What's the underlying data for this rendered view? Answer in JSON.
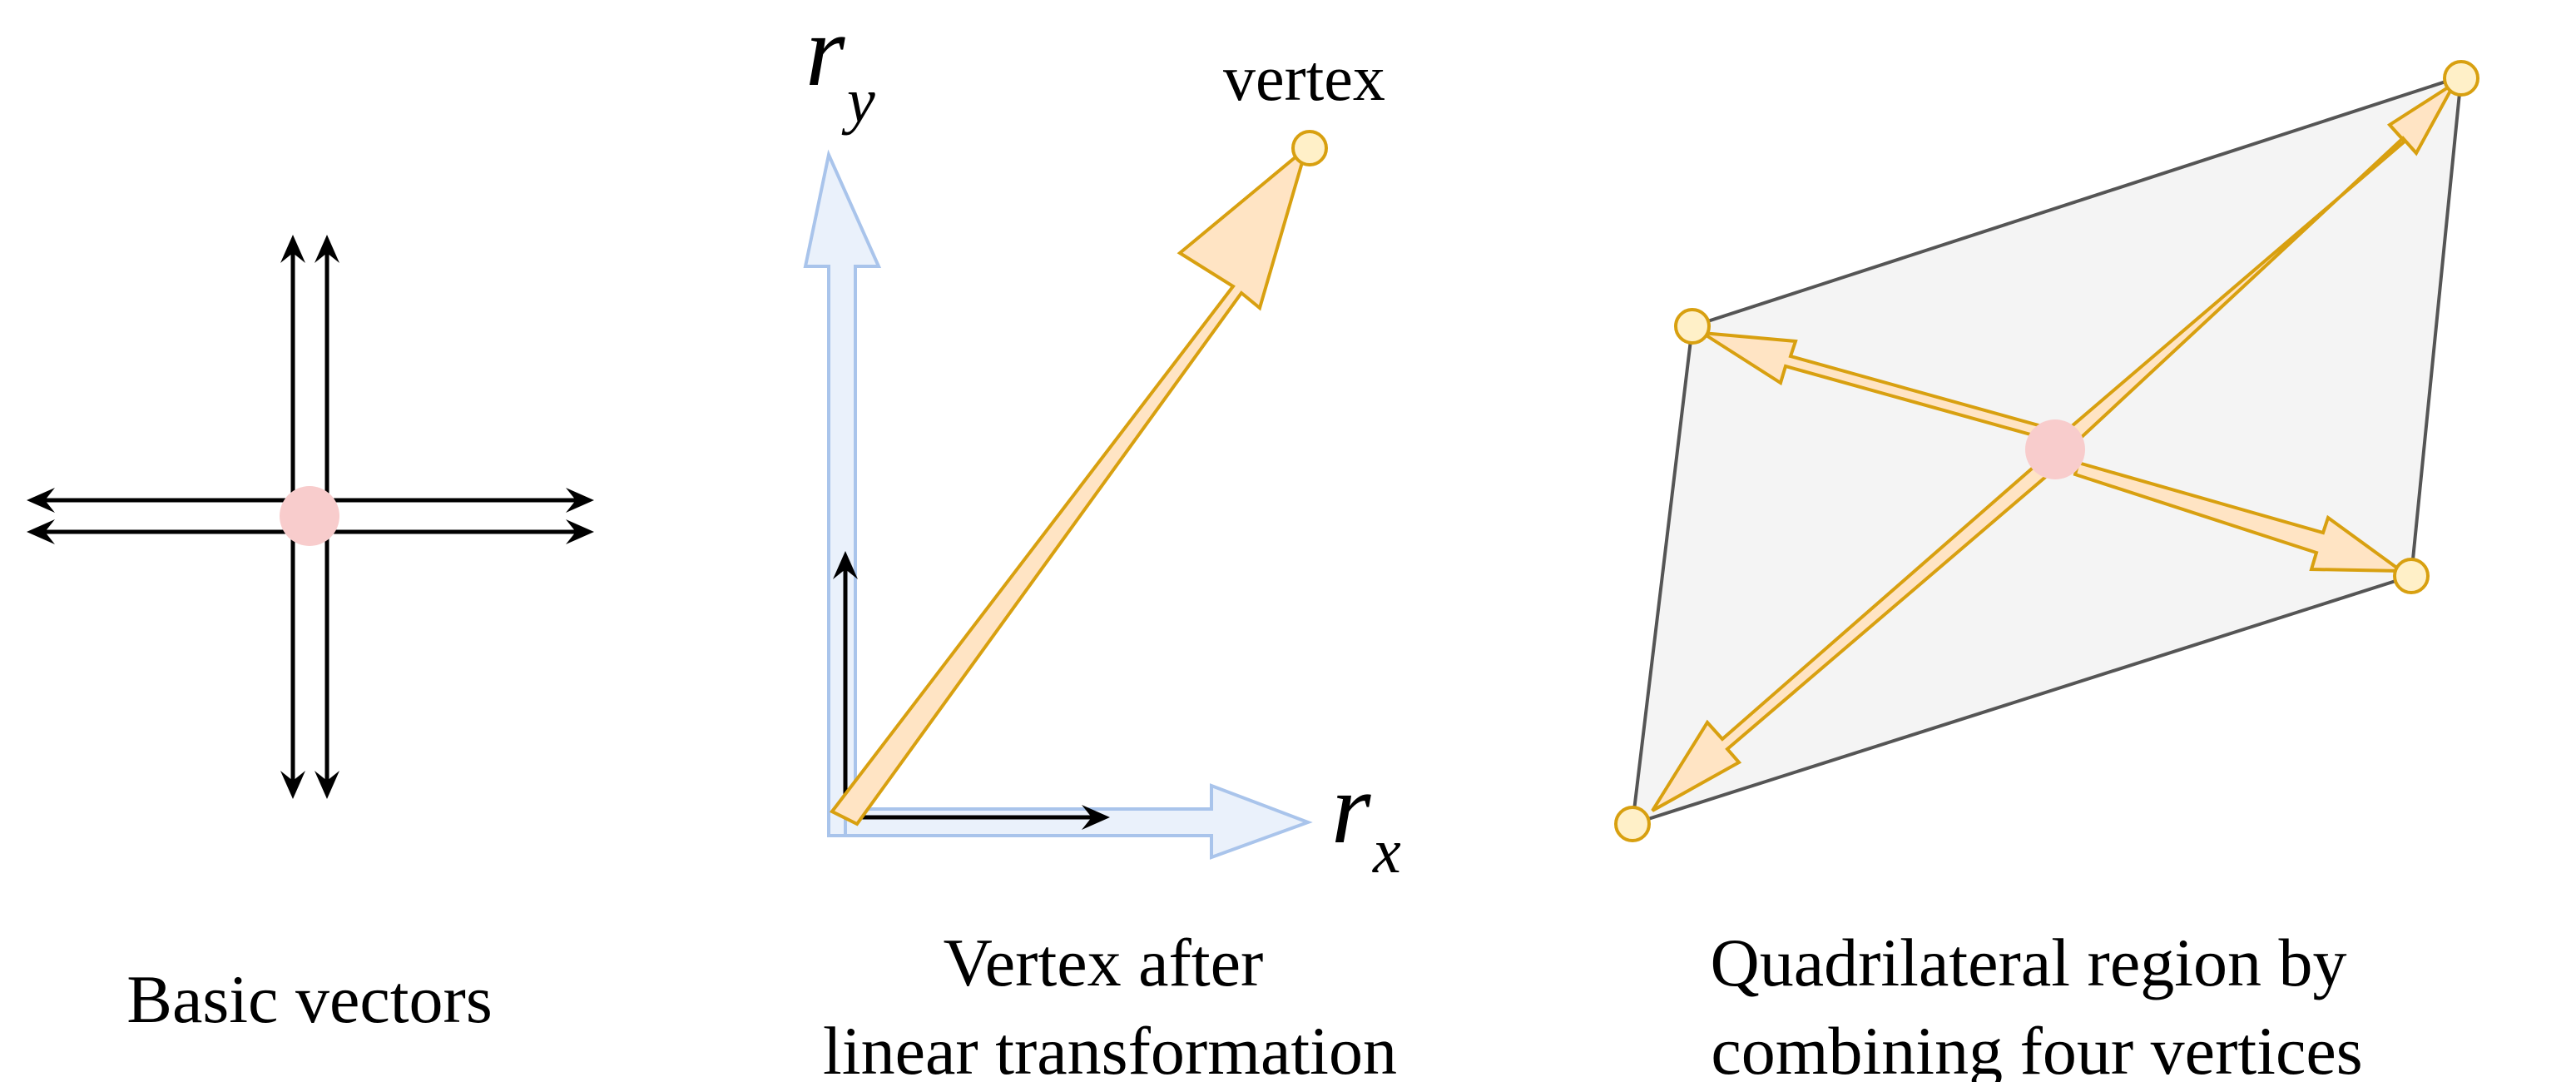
{
  "panels": [
    {
      "id": "basic",
      "caption_lines": [
        "Basic vectors"
      ]
    },
    {
      "id": "transform",
      "caption_lines": [
        "Vertex after",
        "linear transformation"
      ]
    },
    {
      "id": "quad",
      "caption_lines": [
        "Quadrilateral region by",
        "combining four vertices"
      ]
    }
  ],
  "labels": {
    "vertex": "vertex",
    "ry_main": "r",
    "ry_sub": "y",
    "rx_main": "r",
    "rx_sub": "x"
  },
  "colors": {
    "orange_fill": "#FFE4C4",
    "orange_stroke": "#D8A010",
    "vertex_fill": "#FFF0C8",
    "origin_fill": "#F8CCCC",
    "blue_fill": "#EAF1FB",
    "blue_stroke": "#A9C4EB",
    "quad_fill": "#F4F4F4",
    "quad_stroke": "#555555",
    "black": "#000000"
  }
}
